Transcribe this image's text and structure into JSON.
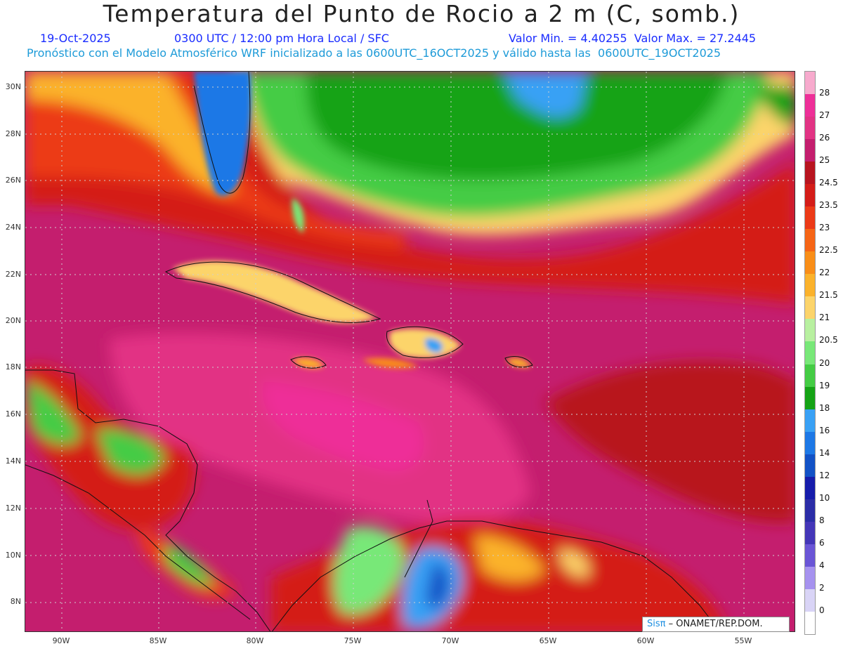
{
  "header": {
    "title": "Temperatura del Punto de Rocio a 2 m (C, somb.)",
    "date": "19-Oct-2025",
    "time": "0300 UTC / 12:00 pm Hora Local / SFC",
    "minmax": "Valor Min. = 4.40255  Valor Max. = 27.2445",
    "model_line": "Pronóstico con el Modelo Atmosférico WRF inicializado a las 0600UTC_16OCT2025 y válido hasta las  0600UTC_19OCT2025"
  },
  "map": {
    "lat_labels": [
      "30N",
      "28N",
      "26N",
      "24N",
      "22N",
      "20N",
      "18N",
      "16N",
      "14N",
      "12N",
      "10N",
      "8N"
    ],
    "lon_labels": [
      "90W",
      "85W",
      "80W",
      "75W",
      "70W",
      "65W",
      "60W",
      "55W"
    ],
    "grid_style": "dotted"
  },
  "colorbar": {
    "labels": [
      "28",
      "27",
      "26",
      "25",
      "24.5",
      "23.5",
      "23",
      "22.5",
      "22",
      "21.5",
      "21",
      "20.5",
      "20",
      "19",
      "18",
      "16",
      "14",
      "12",
      "10",
      "8",
      "6",
      "4",
      "2",
      "0"
    ],
    "colors": [
      "#f7aacd",
      "#ee2f98",
      "#e23384",
      "#c41e6e",
      "#b8141f",
      "#d41c18",
      "#ec3a17",
      "#f66516",
      "#f98e18",
      "#fbb22b",
      "#fcd46a",
      "#b8f0a0",
      "#78e878",
      "#44cc44",
      "#15a315",
      "#39a1f5",
      "#1d78e6",
      "#1252c6",
      "#161cab",
      "#2b2da7",
      "#4436b8",
      "#6a55d6",
      "#a692ef",
      "#d9d4f6",
      "#ffffff"
    ]
  },
  "credit": {
    "brand": "Sisπ",
    "text": "– ONAMET/REP.DOM."
  }
}
